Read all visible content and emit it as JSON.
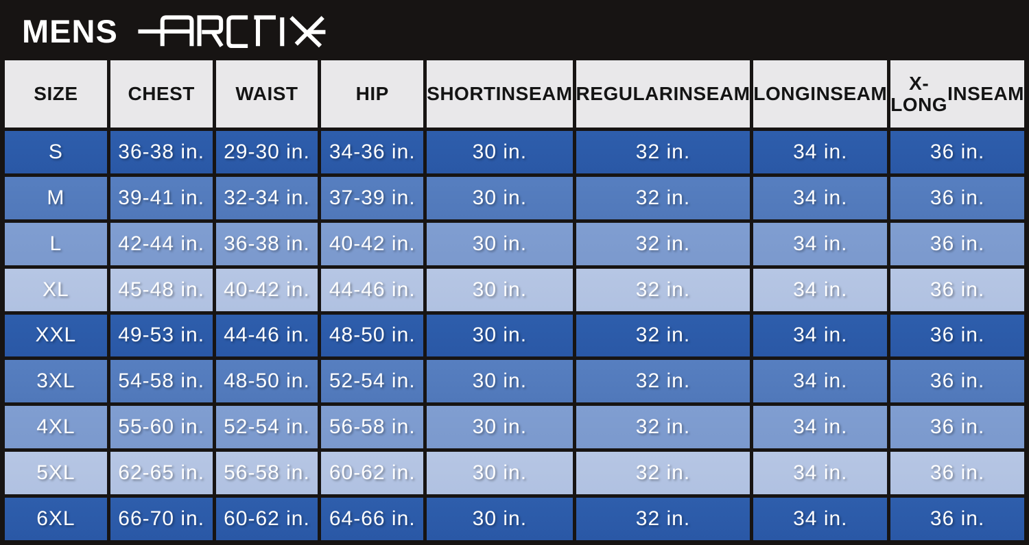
{
  "brand": {
    "prefix": "MENS",
    "logo_text": "ARCTIX"
  },
  "colors": {
    "banner_bg": "#171413",
    "grid_line": "#171413",
    "header_bg": "#e9e8ea",
    "header_text": "#141414",
    "cell_text": "#ffffff",
    "row_dark": "#2b5aa9",
    "row_medium": "#527cbd",
    "row_medium_light": "#7e9cd0",
    "row_light": "#b3c3e3"
  },
  "table": {
    "headers": [
      {
        "key": "size",
        "lines": [
          "SIZE"
        ]
      },
      {
        "key": "chest",
        "lines": [
          "CHEST"
        ]
      },
      {
        "key": "waist",
        "lines": [
          "WAIST"
        ]
      },
      {
        "key": "hip",
        "lines": [
          "HIP"
        ]
      },
      {
        "key": "short-inseam",
        "lines": [
          "SHORT",
          "INSEAM"
        ]
      },
      {
        "key": "regular-inseam",
        "lines": [
          "REGULAR",
          "INSEAM"
        ]
      },
      {
        "key": "long-inseam",
        "lines": [
          "LONG",
          "INSEAM"
        ]
      },
      {
        "key": "x-long-inseam",
        "lines": [
          "X-LONG",
          "INSEAM"
        ]
      }
    ],
    "rows": [
      {
        "shade": "dark",
        "cells": [
          "S",
          "36-38 in.",
          "29-30 in.",
          "34-36 in.",
          "30 in.",
          "32 in.",
          "34 in.",
          "36 in."
        ]
      },
      {
        "shade": "medium",
        "cells": [
          "M",
          "39-41 in.",
          "32-34 in.",
          "37-39 in.",
          "30 in.",
          "32 in.",
          "34 in.",
          "36 in."
        ]
      },
      {
        "shade": "medium-light",
        "cells": [
          "L",
          "42-44 in.",
          "36-38 in.",
          "40-42 in.",
          "30 in.",
          "32 in.",
          "34 in.",
          "36 in."
        ]
      },
      {
        "shade": "light",
        "cells": [
          "XL",
          "45-48 in.",
          "40-42 in.",
          "44-46 in.",
          "30 in.",
          "32 in.",
          "34 in.",
          "36 in."
        ]
      },
      {
        "shade": "dark",
        "cells": [
          "XXL",
          "49-53 in.",
          "44-46 in.",
          "48-50 in.",
          "30 in.",
          "32 in.",
          "34 in.",
          "36 in."
        ]
      },
      {
        "shade": "medium",
        "cells": [
          "3XL",
          "54-58 in.",
          "48-50 in.",
          "52-54 in.",
          "30 in.",
          "32 in.",
          "34 in.",
          "36 in."
        ]
      },
      {
        "shade": "medium-light",
        "cells": [
          "4XL",
          "55-60 in.",
          "52-54 in.",
          "56-58 in.",
          "30 in.",
          "32 in.",
          "34 in.",
          "36 in."
        ]
      },
      {
        "shade": "light",
        "cells": [
          "5XL",
          "62-65 in.",
          "56-58 in.",
          "60-62 in.",
          "30 in.",
          "32 in.",
          "34 in.",
          "36 in."
        ]
      },
      {
        "shade": "dark",
        "cells": [
          "6XL",
          "66-70 in.",
          "60-62 in.",
          "64-66 in.",
          "30 in.",
          "32 in.",
          "34 in.",
          "36 in."
        ]
      }
    ]
  },
  "chart_data": {
    "type": "table",
    "title": "MENS ARCTIX size chart",
    "columns": [
      "SIZE",
      "CHEST",
      "WAIST",
      "HIP",
      "SHORT INSEAM",
      "REGULAR INSEAM",
      "LONG INSEAM",
      "X-LONG INSEAM"
    ],
    "rows": [
      [
        "S",
        "36-38 in.",
        "29-30 in.",
        "34-36 in.",
        "30 in.",
        "32 in.",
        "34 in.",
        "36 in."
      ],
      [
        "M",
        "39-41 in.",
        "32-34 in.",
        "37-39 in.",
        "30 in.",
        "32 in.",
        "34 in.",
        "36 in."
      ],
      [
        "L",
        "42-44 in.",
        "36-38 in.",
        "40-42 in.",
        "30 in.",
        "32 in.",
        "34 in.",
        "36 in."
      ],
      [
        "XL",
        "45-48 in.",
        "40-42 in.",
        "44-46 in.",
        "30 in.",
        "32 in.",
        "34 in.",
        "36 in."
      ],
      [
        "XXL",
        "49-53 in.",
        "44-46 in.",
        "48-50 in.",
        "30 in.",
        "32 in.",
        "34 in.",
        "36 in."
      ],
      [
        "3XL",
        "54-58 in.",
        "48-50 in.",
        "52-54 in.",
        "30 in.",
        "32 in.",
        "34 in.",
        "36 in."
      ],
      [
        "4XL",
        "55-60 in.",
        "52-54 in.",
        "56-58 in.",
        "30 in.",
        "32 in.",
        "34 in.",
        "36 in."
      ],
      [
        "5XL",
        "62-65 in.",
        "56-58 in.",
        "60-62 in.",
        "30 in.",
        "32 in.",
        "34 in.",
        "36 in."
      ],
      [
        "6XL",
        "66-70 in.",
        "60-62 in.",
        "64-66 in.",
        "30 in.",
        "32 in.",
        "34 in.",
        "36 in."
      ]
    ],
    "layout": {
      "row_shade_cycle": [
        "dark",
        "medium",
        "medium-light",
        "light"
      ],
      "header_background": "#e9e8ea",
      "grid_lines": "black",
      "units": "inches"
    }
  }
}
